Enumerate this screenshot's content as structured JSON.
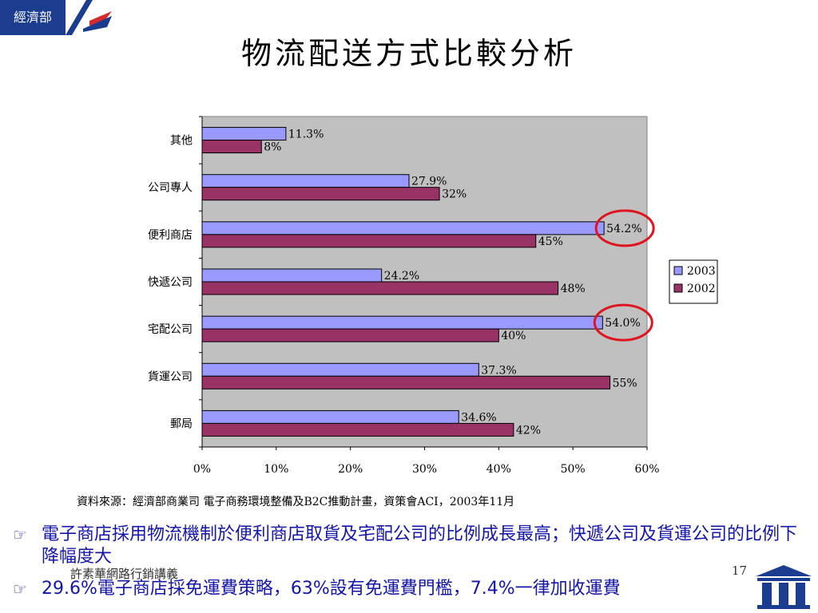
{
  "header": {
    "badge_label": "經濟部",
    "title": "物流配送方式比較分析"
  },
  "chart_data": {
    "type": "bar",
    "orientation": "horizontal",
    "categories": [
      "其他",
      "公司專人",
      "便利商店",
      "快遞公司",
      "宅配公司",
      "貨運公司",
      "郵局"
    ],
    "series": [
      {
        "name": "2003",
        "color": "#9999ff",
        "values": [
          11.3,
          27.9,
          54.2,
          24.2,
          54.0,
          37.3,
          34.6
        ],
        "labels": [
          "11.3%",
          "27.9%",
          "54.2%",
          "24.2%",
          "54.0%",
          "37.3%",
          "34.6%"
        ]
      },
      {
        "name": "2002",
        "color": "#993366",
        "values": [
          8,
          32,
          45,
          48,
          40,
          55,
          42
        ],
        "labels": [
          "8%",
          "32%",
          "45%",
          "48%",
          "40%",
          "55%",
          "42%"
        ]
      }
    ],
    "xlim": [
      0,
      60
    ],
    "xticks": [
      "0%",
      "10%",
      "20%",
      "30%",
      "40%",
      "50%",
      "60%"
    ],
    "highlight_categories": [
      "便利商店",
      "宅配公司"
    ],
    "plot_background": "#c0c0c0",
    "legend_position": "right"
  },
  "source_note": "資料來源：經濟部商業司  電子商務環境整備及B2C推動計畫，資策會ACI，2003年11月",
  "bullets": [
    {
      "icon": "pointing-hand-icon",
      "text": "電子商店採用物流機制於便利商店取貨及宅配公司的比例成長最高；快遞公司及貨運公司的比例下降幅度大"
    },
    {
      "icon": "pointing-hand-icon",
      "text": "29.6%電子商店採免運費策略，63%設有免運費門檻，7.4%一律加收運費"
    }
  ],
  "footer": {
    "author": "許素華網路行銷講義",
    "page_number": "17"
  }
}
